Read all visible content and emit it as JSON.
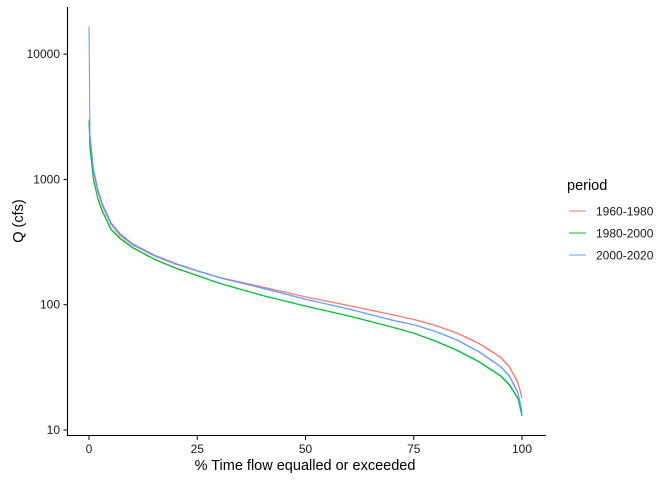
{
  "chart_data": {
    "type": "line",
    "title": "",
    "xlabel": "% Time flow equalled or exceeded",
    "ylabel": "Q (cfs)",
    "xlim": [
      -5,
      105
    ],
    "ylim": [
      10,
      17000
    ],
    "y_scale": "log10",
    "grid": false,
    "legend_position": "right",
    "x_ticks": [
      0,
      25,
      50,
      75,
      100
    ],
    "x_tick_labels": [
      "0",
      "25",
      "50",
      "75",
      "100"
    ],
    "y_ticks": [
      10,
      100,
      1000,
      10000
    ],
    "y_tick_labels": [
      "10",
      "100",
      "1000",
      "10000"
    ],
    "legend_title": "period",
    "x": [
      0,
      0.2,
      1,
      2,
      3,
      5,
      7,
      10,
      15,
      20,
      25,
      30,
      40,
      50,
      60,
      70,
      75,
      80,
      85,
      90,
      95,
      97,
      99,
      100
    ],
    "series": [
      {
        "name": "1960-1980",
        "color": "#F8766D",
        "values": [
          3000,
          2100,
          1150,
          800,
          620,
          440,
          360,
          300,
          245,
          210,
          185,
          165,
          138,
          115,
          98,
          83,
          76,
          68,
          59,
          49,
          38,
          32,
          24,
          18
        ]
      },
      {
        "name": "1980-2000",
        "color": "#00BA38",
        "values": [
          2900,
          1800,
          1000,
          700,
          560,
          400,
          340,
          285,
          230,
          195,
          170,
          148,
          118,
          97,
          81,
          66,
          59,
          51,
          43,
          35,
          27,
          23,
          18,
          13
        ]
      },
      {
        "name": "2000-2020",
        "color": "#619CFF",
        "values": [
          16500,
          2300,
          1200,
          830,
          640,
          450,
          370,
          305,
          248,
          212,
          186,
          164,
          135,
          110,
          92,
          75,
          69,
          61,
          52,
          42,
          32,
          27,
          20,
          14
        ]
      }
    ]
  }
}
